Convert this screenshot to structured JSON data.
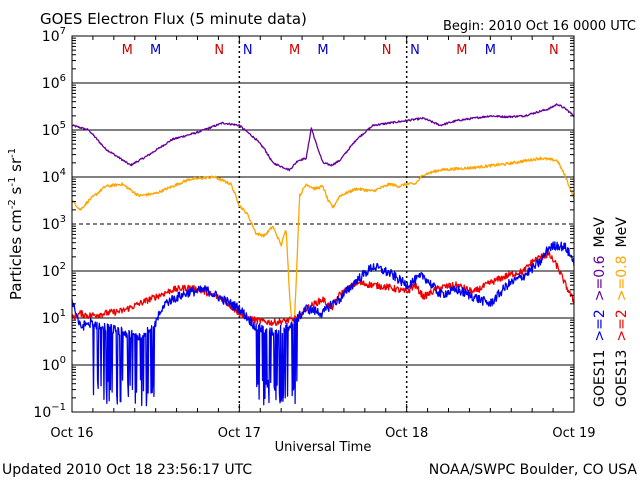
{
  "chart_data": {
    "type": "line",
    "title": "GOES Electron Flux (5 minute data)",
    "begin_text": "Begin: 2010 Oct 16 0000 UTC",
    "xlabel": "Universal Time",
    "ylabel_parts": [
      "Particles cm",
      "-2",
      "s",
      "-1",
      "sr",
      "-1"
    ],
    "x_ticks": [
      {
        "day": 0,
        "label": "Oct 16"
      },
      {
        "day": 1,
        "label": "Oct 17"
      },
      {
        "day": 2,
        "label": "Oct 18"
      },
      {
        "day": 3,
        "label": "Oct 19"
      }
    ],
    "y_log_ticks": [
      -1,
      0,
      1,
      2,
      3,
      4,
      5,
      6,
      7
    ],
    "ylim_log": [
      -1,
      7
    ],
    "xlim_days": [
      0,
      3
    ],
    "dashed_y_log": [
      3
    ],
    "markers": [
      {
        "day": 0.33,
        "label": "M",
        "color": "#d00000"
      },
      {
        "day": 0.5,
        "label": "M",
        "color": "#0000cc"
      },
      {
        "day": 0.88,
        "label": "N",
        "color": "#d00000"
      },
      {
        "day": 1.05,
        "label": "N",
        "color": "#0000cc"
      },
      {
        "day": 1.33,
        "label": "M",
        "color": "#d00000"
      },
      {
        "day": 1.5,
        "label": "M",
        "color": "#0000cc"
      },
      {
        "day": 1.88,
        "label": "N",
        "color": "#d00000"
      },
      {
        "day": 2.05,
        "label": "N",
        "color": "#0000cc"
      },
      {
        "day": 2.33,
        "label": "M",
        "color": "#d00000"
      },
      {
        "day": 2.5,
        "label": "M",
        "color": "#0000cc"
      },
      {
        "day": 2.88,
        "label": "N",
        "color": "#d00000"
      },
      {
        "day": 3.05,
        "label": "N",
        "color": "#0000cc"
      }
    ],
    "legend": {
      "goes11": "GOES11",
      "goes13": "GOES13",
      "ge2": ">=2",
      "ge06": ">=0.6",
      "ge08": ">=0.8",
      "mev": "MeV",
      "colors": {
        "blue": "#0000ee",
        "red": "#ee0000",
        "purple": "#660099",
        "orange": "#ffa500"
      }
    },
    "series": [
      {
        "key": "purple",
        "color": "#660099",
        "noise": 0.02,
        "points": [
          [
            0,
            5.1
          ],
          [
            0.1,
            5.0
          ],
          [
            0.2,
            4.6
          ],
          [
            0.35,
            4.25
          ],
          [
            0.45,
            4.45
          ],
          [
            0.6,
            4.8
          ],
          [
            0.75,
            4.95
          ],
          [
            0.9,
            5.15
          ],
          [
            1.0,
            5.1
          ],
          [
            1.1,
            4.8
          ],
          [
            1.15,
            4.6
          ],
          [
            1.2,
            4.3
          ],
          [
            1.3,
            4.15
          ],
          [
            1.35,
            4.35
          ],
          [
            1.4,
            4.4
          ],
          [
            1.43,
            5.05
          ],
          [
            1.46,
            4.7
          ],
          [
            1.5,
            4.3
          ],
          [
            1.55,
            4.25
          ],
          [
            1.6,
            4.35
          ],
          [
            1.7,
            4.8
          ],
          [
            1.8,
            5.1
          ],
          [
            1.9,
            5.15
          ],
          [
            2.0,
            5.2
          ],
          [
            2.1,
            5.25
          ],
          [
            2.2,
            5.1
          ],
          [
            2.3,
            5.2
          ],
          [
            2.5,
            5.3
          ],
          [
            2.6,
            5.28
          ],
          [
            2.7,
            5.3
          ],
          [
            2.85,
            5.45
          ],
          [
            2.9,
            5.55
          ],
          [
            2.95,
            5.45
          ],
          [
            3.0,
            5.3
          ]
        ]
      },
      {
        "key": "orange",
        "color": "#ffa500",
        "noise": 0.03,
        "points": [
          [
            0,
            3.5
          ],
          [
            0.05,
            3.3
          ],
          [
            0.1,
            3.5
          ],
          [
            0.2,
            3.8
          ],
          [
            0.3,
            3.85
          ],
          [
            0.4,
            3.6
          ],
          [
            0.5,
            3.65
          ],
          [
            0.6,
            3.8
          ],
          [
            0.7,
            3.95
          ],
          [
            0.85,
            4.0
          ],
          [
            0.95,
            3.85
          ],
          [
            1.0,
            3.4
          ],
          [
            1.05,
            3.2
          ],
          [
            1.1,
            2.8
          ],
          [
            1.15,
            2.75
          ],
          [
            1.2,
            2.95
          ],
          [
            1.25,
            2.55
          ],
          [
            1.28,
            2.9
          ],
          [
            1.3,
            1.5
          ],
          [
            1.31,
            1.1
          ],
          [
            1.32,
            0.6
          ],
          [
            1.33,
            1.0
          ],
          [
            1.34,
            1.8
          ],
          [
            1.36,
            3.6
          ],
          [
            1.4,
            3.85
          ],
          [
            1.45,
            3.75
          ],
          [
            1.5,
            3.8
          ],
          [
            1.53,
            3.5
          ],
          [
            1.56,
            3.35
          ],
          [
            1.6,
            3.6
          ],
          [
            1.7,
            3.75
          ],
          [
            1.8,
            3.7
          ],
          [
            1.9,
            3.85
          ],
          [
            1.95,
            3.8
          ],
          [
            2.0,
            3.85
          ],
          [
            2.05,
            3.85
          ],
          [
            2.1,
            4.05
          ],
          [
            2.2,
            4.15
          ],
          [
            2.4,
            4.2
          ],
          [
            2.6,
            4.28
          ],
          [
            2.8,
            4.4
          ],
          [
            2.9,
            4.35
          ],
          [
            2.95,
            4.0
          ],
          [
            3.0,
            3.55
          ]
        ]
      },
      {
        "key": "red",
        "color": "#ee0000",
        "noise": 0.07,
        "points": [
          [
            0,
            1.0
          ],
          [
            0.05,
            1.1
          ],
          [
            0.1,
            1.05
          ],
          [
            0.2,
            1.1
          ],
          [
            0.3,
            1.15
          ],
          [
            0.4,
            1.3
          ],
          [
            0.5,
            1.45
          ],
          [
            0.6,
            1.6
          ],
          [
            0.7,
            1.65
          ],
          [
            0.8,
            1.55
          ],
          [
            0.9,
            1.4
          ],
          [
            1.0,
            1.1
          ],
          [
            1.05,
            1.0
          ],
          [
            1.1,
            0.95
          ],
          [
            1.2,
            0.9
          ],
          [
            1.3,
            0.95
          ],
          [
            1.35,
            1.0
          ],
          [
            1.4,
            1.2
          ],
          [
            1.5,
            1.4
          ],
          [
            1.55,
            1.2
          ],
          [
            1.6,
            1.5
          ],
          [
            1.7,
            1.75
          ],
          [
            1.8,
            1.7
          ],
          [
            1.9,
            1.65
          ],
          [
            2.0,
            1.55
          ],
          [
            2.05,
            1.7
          ],
          [
            2.1,
            1.45
          ],
          [
            2.2,
            1.65
          ],
          [
            2.3,
            1.7
          ],
          [
            2.4,
            1.55
          ],
          [
            2.5,
            1.75
          ],
          [
            2.6,
            1.9
          ],
          [
            2.7,
            2.0
          ],
          [
            2.75,
            2.2
          ],
          [
            2.8,
            2.3
          ],
          [
            2.85,
            2.35
          ],
          [
            2.9,
            2.1
          ],
          [
            2.95,
            1.7
          ],
          [
            3.0,
            1.35
          ]
        ]
      },
      {
        "key": "blue",
        "color": "#0000ee",
        "noise": 0.1,
        "floor": -0.9,
        "dropouts": [
          [
            0.1,
            0.55
          ],
          [
            1.1,
            1.35
          ]
        ],
        "points": [
          [
            0,
            1.4
          ],
          [
            0.05,
            0.8
          ],
          [
            0.1,
            0.9
          ],
          [
            0.2,
            0.8
          ],
          [
            0.3,
            0.7
          ],
          [
            0.4,
            0.6
          ],
          [
            0.5,
            0.9
          ],
          [
            0.55,
            1.3
          ],
          [
            0.6,
            1.4
          ],
          [
            0.7,
            1.55
          ],
          [
            0.8,
            1.6
          ],
          [
            0.9,
            1.4
          ],
          [
            1.0,
            1.2
          ],
          [
            1.1,
            0.8
          ],
          [
            1.2,
            0.7
          ],
          [
            1.3,
            0.8
          ],
          [
            1.35,
            1.0
          ],
          [
            1.4,
            1.2
          ],
          [
            1.5,
            1.1
          ],
          [
            1.55,
            1.3
          ],
          [
            1.6,
            1.4
          ],
          [
            1.7,
            1.8
          ],
          [
            1.8,
            2.1
          ],
          [
            1.9,
            1.95
          ],
          [
            2.0,
            1.7
          ],
          [
            2.1,
            1.9
          ],
          [
            2.2,
            1.5
          ],
          [
            2.3,
            1.6
          ],
          [
            2.4,
            1.45
          ],
          [
            2.5,
            1.3
          ],
          [
            2.6,
            1.7
          ],
          [
            2.7,
            1.9
          ],
          [
            2.8,
            2.2
          ],
          [
            2.85,
            2.5
          ],
          [
            2.9,
            2.55
          ],
          [
            2.95,
            2.5
          ],
          [
            3.0,
            2.2
          ]
        ]
      }
    ]
  },
  "footer": {
    "updated": "Updated 2010 Oct 18 23:56:17 UTC",
    "credit": "NOAA/SWPC Boulder, CO USA"
  }
}
